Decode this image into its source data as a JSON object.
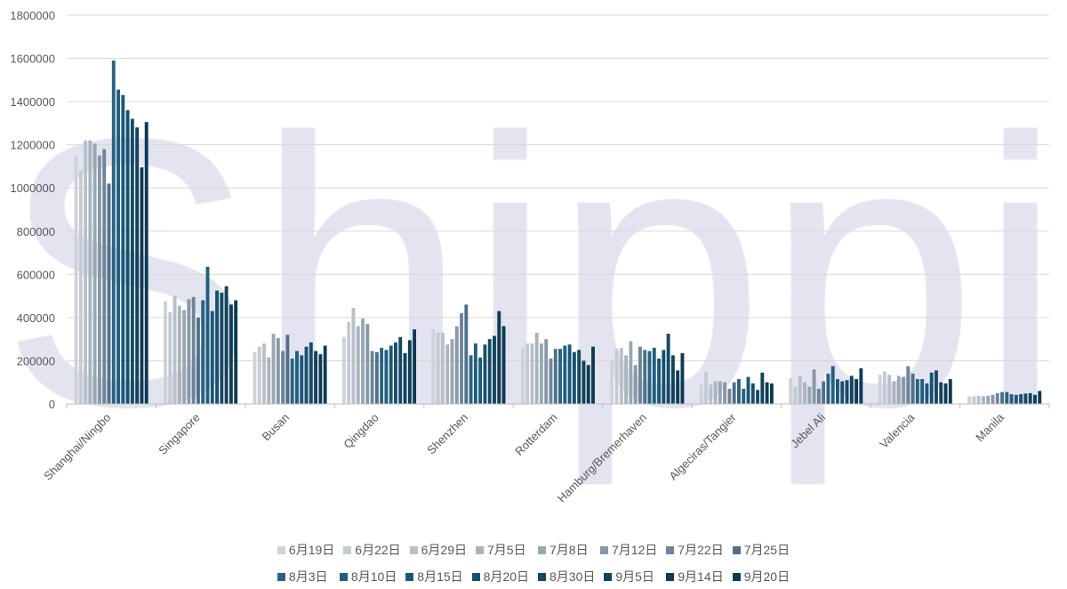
{
  "chart_data": {
    "type": "bar",
    "title": "",
    "xlabel": "",
    "ylabel": "",
    "ylim": [
      0,
      1800000
    ],
    "yticks": [
      0,
      200000,
      400000,
      600000,
      800000,
      1000000,
      1200000,
      1400000,
      1600000,
      1800000
    ],
    "grid": true,
    "legend_position": "bottom",
    "watermark": "Shippio",
    "categories": [
      "Shanghai/Ningbo",
      "Singapore",
      "Busan",
      "Qingdao",
      "Shenzhen",
      "Rotterdam",
      "Hamburg/Bremerhaven",
      "Algeciras/Tangier",
      "Jebel Ali",
      "Valencia",
      "Manila"
    ],
    "series": [
      {
        "name": "6月19日",
        "color": "#ccd3d9",
        "values": [
          1150000,
          475000,
          240000,
          310000,
          345000,
          260000,
          200000,
          90000,
          120000,
          135000,
          35000
        ]
      },
      {
        "name": "6月22日",
        "color": "#c3cbd2",
        "values": [
          1080000,
          425000,
          265000,
          380000,
          330000,
          280000,
          255000,
          150000,
          80000,
          150000,
          35000
        ]
      },
      {
        "name": "6月29日",
        "color": "#b8c1c9",
        "values": [
          1220000,
          500000,
          280000,
          445000,
          330000,
          280000,
          260000,
          90000,
          130000,
          135000,
          38000
        ]
      },
      {
        "name": "7月5日",
        "color": "#a9b4be",
        "values": [
          1220000,
          455000,
          215000,
          360000,
          275000,
          330000,
          225000,
          105000,
          100000,
          105000,
          36000
        ]
      },
      {
        "name": "7月8日",
        "color": "#9aa7b3",
        "values": [
          1205000,
          435000,
          325000,
          395000,
          300000,
          280000,
          290000,
          105000,
          80000,
          130000,
          38000
        ]
      },
      {
        "name": "7月12日",
        "color": "#8797a6",
        "values": [
          1150000,
          485000,
          305000,
          370000,
          360000,
          300000,
          180000,
          100000,
          160000,
          125000,
          42000
        ]
      },
      {
        "name": "7月22日",
        "color": "#6e8498",
        "values": [
          1180000,
          495000,
          245000,
          245000,
          420000,
          210000,
          265000,
          70000,
          70000,
          175000,
          50000
        ]
      },
      {
        "name": "7月25日",
        "color": "#4f7089",
        "values": [
          1020000,
          400000,
          320000,
          240000,
          460000,
          255000,
          250000,
          100000,
          105000,
          140000,
          55000
        ]
      },
      {
        "name": "8月3日",
        "color": "#2a6282",
        "values": [
          1590000,
          480000,
          210000,
          260000,
          225000,
          255000,
          245000,
          115000,
          140000,
          115000,
          55000
        ]
      },
      {
        "name": "8月10日",
        "color": "#1e5f80",
        "values": [
          1455000,
          635000,
          245000,
          250000,
          280000,
          270000,
          260000,
          70000,
          175000,
          115000,
          45000
        ]
      },
      {
        "name": "8月15日",
        "color": "#1a5877",
        "values": [
          1430000,
          430000,
          225000,
          270000,
          215000,
          275000,
          210000,
          125000,
          115000,
          95000,
          42000
        ]
      },
      {
        "name": "8月20日",
        "color": "#17506d",
        "values": [
          1360000,
          525000,
          265000,
          285000,
          275000,
          240000,
          250000,
          95000,
          105000,
          145000,
          45000
        ]
      },
      {
        "name": "8月30日",
        "color": "#144a65",
        "values": [
          1320000,
          515000,
          285000,
          310000,
          300000,
          250000,
          325000,
          65000,
          110000,
          155000,
          48000
        ]
      },
      {
        "name": "9月5日",
        "color": "#11435c",
        "values": [
          1280000,
          545000,
          245000,
          235000,
          315000,
          200000,
          225000,
          145000,
          130000,
          100000,
          50000
        ]
      },
      {
        "name": "9月14日",
        "color": "#0e3c53",
        "values": [
          1095000,
          460000,
          230000,
          295000,
          430000,
          180000,
          155000,
          100000,
          115000,
          95000,
          42000
        ]
      },
      {
        "name": "9月20日",
        "color": "#0c3a54",
        "values": [
          1305000,
          480000,
          270000,
          345000,
          360000,
          265000,
          235000,
          95000,
          165000,
          115000,
          60000
        ]
      }
    ]
  }
}
